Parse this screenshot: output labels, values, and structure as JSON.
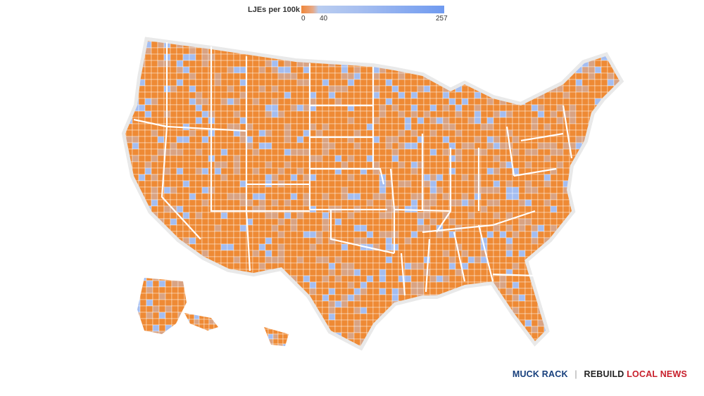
{
  "legend": {
    "title": "LJEs per 100k",
    "tick_min": "0",
    "tick_mid": "40",
    "tick_max": "257",
    "colors": {
      "low": "#f0873a",
      "mid": "#a9c0f0",
      "high": "#6f9af0"
    }
  },
  "map": {
    "description_colors": {
      "fill_base": "#ee8a35",
      "fill_alt": "#d9a383",
      "fill_blue": "#a4bdf0",
      "borders": "#ffffff"
    }
  },
  "branding": {
    "muck_rack": "MUCK RACK",
    "separator": "|",
    "rebuild": "REBUILD",
    "local_news": "LOCAL NEWS"
  }
}
